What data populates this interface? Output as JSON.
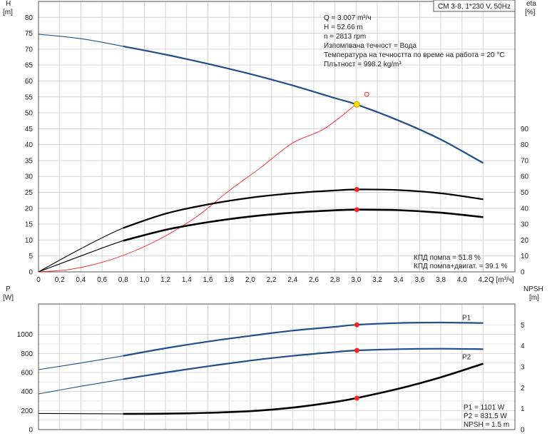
{
  "chart_data": [
    {
      "type": "line",
      "panel": "head-efficiency",
      "title_box": "CM 3-8, 1*230 V, 50Hz",
      "y_left_label": "H",
      "y_left_unit": "[m]",
      "y_right_label": "eta",
      "y_right_unit": "[%]",
      "x_label": "Q",
      "x_unit": "[m³/ч]",
      "xlim": [
        0,
        4.5
      ],
      "x_ticks": [
        0,
        0.2,
        0.4,
        0.6,
        0.8,
        1.0,
        1.2,
        1.4,
        1.6,
        1.8,
        2.0,
        2.2,
        2.4,
        2.6,
        2.8,
        3.0,
        3.2,
        3.4,
        3.6,
        3.8,
        4.0,
        4.2
      ],
      "x_tick_labels": [
        "0",
        "0,2",
        "0,4",
        "0,6",
        "0,8",
        "1,0",
        "1,2",
        "1,4",
        "1,6",
        "1,8",
        "2,0",
        "2,2",
        "2,4",
        "2,6",
        "2,8",
        "3,0",
        "3,2",
        "3,4",
        "3,6",
        "3,8",
        "4,0",
        "4,2"
      ],
      "ylim_left": [
        0,
        85
      ],
      "y_left_ticks": [
        0,
        5,
        10,
        15,
        20,
        25,
        30,
        35,
        40,
        45,
        50,
        55,
        60,
        65,
        70,
        75,
        80
      ],
      "ylim_right": [
        0,
        170
      ],
      "y_right_ticks": [
        0,
        10,
        20,
        30,
        40,
        50,
        60,
        70,
        80,
        90
      ],
      "grid": true,
      "info_lines": [
        "Q = 3.007 m³/ч",
        "H = 52.66 m",
        "n = 2813 rpm",
        "Изпомпвана течност = Вода",
        "Температура на течността по време на работа = 20 °C",
        "Плътност = 998.2 kg/m³"
      ],
      "efficiency_lines": [
        "КПД помпа = 51.8 %",
        "КПД помпа+двигат. = 39.1 %"
      ],
      "series": [
        {
          "key": "head",
          "color": "#1f4e8c",
          "axis": "left",
          "x": [
            0,
            0.4,
            0.8,
            1.2,
            1.6,
            2.0,
            2.4,
            2.8,
            3.0,
            3.4,
            3.8,
            4.2
          ],
          "y": [
            74.7,
            73.3,
            70.9,
            68.3,
            65.4,
            62.2,
            58.6,
            54.6,
            52.66,
            47.6,
            41.6,
            34.2
          ]
        },
        {
          "key": "system",
          "color": "#ff2020",
          "axis": "left",
          "x": [
            0,
            0.3,
            0.6,
            0.9,
            1.2,
            1.5,
            1.8,
            2.1,
            2.4,
            2.7,
            3.0
          ],
          "y": [
            0,
            0.8,
            3.0,
            6.5,
            11.3,
            17.5,
            25.5,
            32.8,
            40.5,
            45.0,
            52.66
          ]
        },
        {
          "key": "eta_pump",
          "color": "#000000",
          "axis": "right",
          "x": [
            0,
            0.4,
            0.8,
            1.2,
            1.6,
            2.0,
            2.4,
            2.8,
            3.0,
            3.4,
            3.8,
            4.2
          ],
          "y": [
            0,
            14.6,
            27.6,
            36.6,
            42.4,
            46.6,
            49.4,
            51.2,
            51.8,
            51.4,
            49.4,
            45.6
          ]
        },
        {
          "key": "eta_total",
          "color": "#000000",
          "axis": "right",
          "x": [
            0,
            0.4,
            0.8,
            1.2,
            1.6,
            2.0,
            2.4,
            2.8,
            3.0,
            3.4,
            3.8,
            4.2
          ],
          "y": [
            0,
            10.0,
            19.6,
            26.4,
            31.2,
            34.8,
            37.2,
            38.7,
            39.1,
            38.8,
            37.2,
            34.4
          ]
        }
      ],
      "markers": [
        {
          "x": 3.007,
          "y": 52.66,
          "axis": "left",
          "fill": "#ffe000",
          "stroke": "#c8a000",
          "r": 4
        },
        {
          "x": 3.007,
          "y": 51.8,
          "axis": "right",
          "fill": "#ff2020",
          "stroke": "#ff2020",
          "r": 3
        },
        {
          "x": 3.007,
          "y": 39.1,
          "axis": "right",
          "fill": "#ff2020",
          "stroke": "#ff2020",
          "r": 3
        },
        {
          "x": 3.1,
          "y": 55.8,
          "axis": "left",
          "fill": "none",
          "stroke": "#ff2020",
          "r": 3
        }
      ]
    },
    {
      "type": "line",
      "panel": "power-npsh",
      "y_left_label": "P",
      "y_left_unit": "[W]",
      "y_right_label": "NPSH",
      "y_right_unit": "[m]",
      "xlim": [
        0,
        4.5
      ],
      "ylim_left": [
        0,
        1320
      ],
      "y_left_ticks": [
        0,
        200,
        400,
        600,
        800,
        1000
      ],
      "ylim_right": [
        0,
        6
      ],
      "y_right_ticks": [
        0,
        1,
        2,
        3,
        4,
        5
      ],
      "grid": true,
      "info_lines": [
        "P1 = 1101 W",
        "P2 = 831.5 W",
        "NPSH = 1.5 m"
      ],
      "series": [
        {
          "key": "P1",
          "name": "P1",
          "color": "#1f4e8c",
          "axis": "left",
          "x": [
            0,
            0.4,
            0.8,
            1.2,
            1.6,
            2.0,
            2.4,
            2.8,
            3.0,
            3.4,
            3.8,
            4.2
          ],
          "y": [
            630,
            700,
            775,
            855,
            925,
            985,
            1040,
            1080,
            1101,
            1120,
            1125,
            1120
          ]
        },
        {
          "key": "P2",
          "name": "P2",
          "color": "#1f4e8c",
          "axis": "left",
          "x": [
            0,
            0.4,
            0.8,
            1.2,
            1.6,
            2.0,
            2.4,
            2.8,
            3.0,
            3.4,
            3.8,
            4.2
          ],
          "y": [
            375,
            455,
            530,
            600,
            665,
            725,
            775,
            815,
            831.5,
            845,
            850,
            845
          ]
        },
        {
          "key": "NPSH",
          "color": "#000000",
          "axis": "right",
          "x": [
            0,
            0.4,
            0.8,
            1.2,
            1.6,
            2.0,
            2.4,
            2.8,
            3.0,
            3.4,
            3.8,
            4.2
          ],
          "y": [
            0.77,
            0.76,
            0.75,
            0.76,
            0.8,
            0.88,
            1.05,
            1.32,
            1.5,
            1.95,
            2.5,
            3.15
          ]
        }
      ],
      "markers": [
        {
          "x": 3.007,
          "y": 1101,
          "axis": "left",
          "fill": "#ff2020",
          "stroke": "#ff2020",
          "r": 3
        },
        {
          "x": 3.007,
          "y": 831.5,
          "axis": "left",
          "fill": "#ff2020",
          "stroke": "#ff2020",
          "r": 3
        },
        {
          "x": 3.007,
          "y": 1.5,
          "axis": "right",
          "fill": "#ff2020",
          "stroke": "#ff2020",
          "r": 3
        }
      ]
    }
  ]
}
